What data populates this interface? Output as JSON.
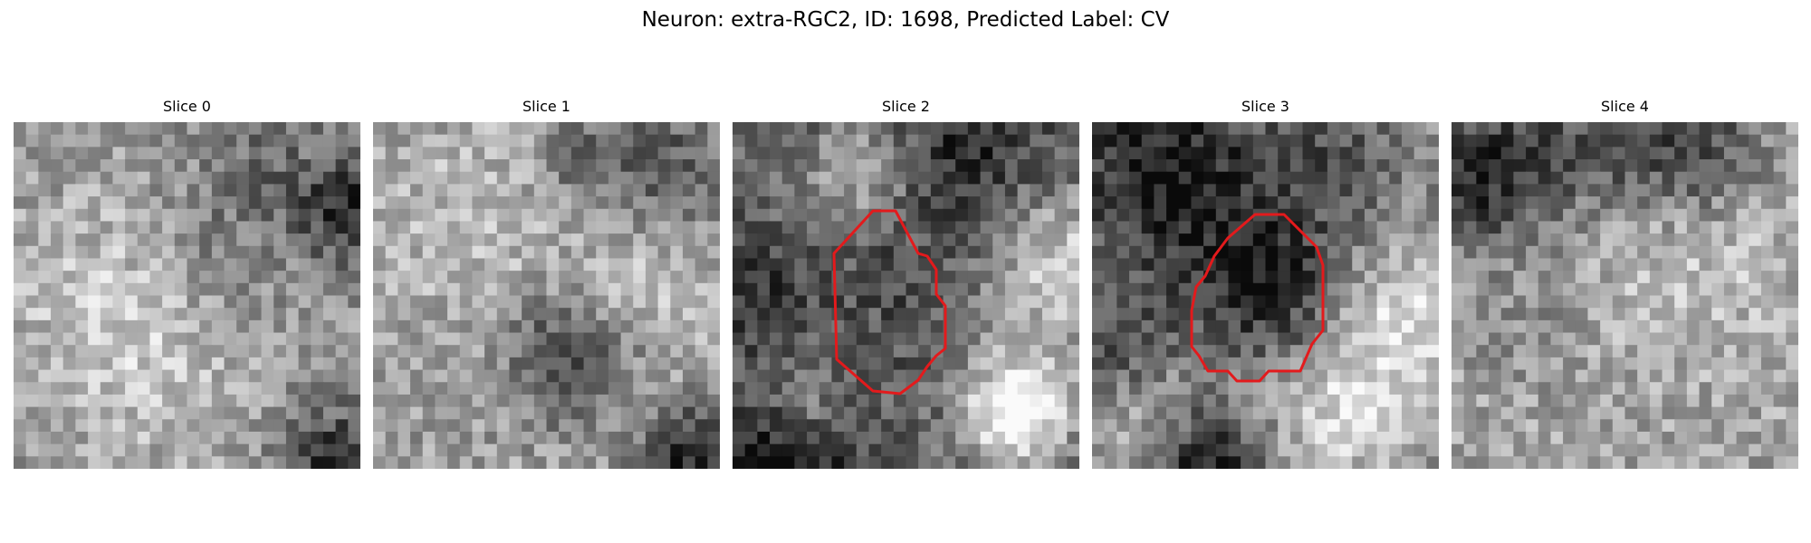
{
  "figure": {
    "title": "Neuron: extra-RGC2, ID: 1698, Predicted Label: CV"
  },
  "outline_color": "#e31a1c",
  "slices": [
    {
      "title": "Slice 0",
      "has_contour": false
    },
    {
      "title": "Slice 1",
      "has_contour": false
    },
    {
      "title": "Slice 2",
      "has_contour": true
    },
    {
      "title": "Slice 3",
      "has_contour": true
    },
    {
      "title": "Slice 4",
      "has_contour": false
    }
  ]
}
